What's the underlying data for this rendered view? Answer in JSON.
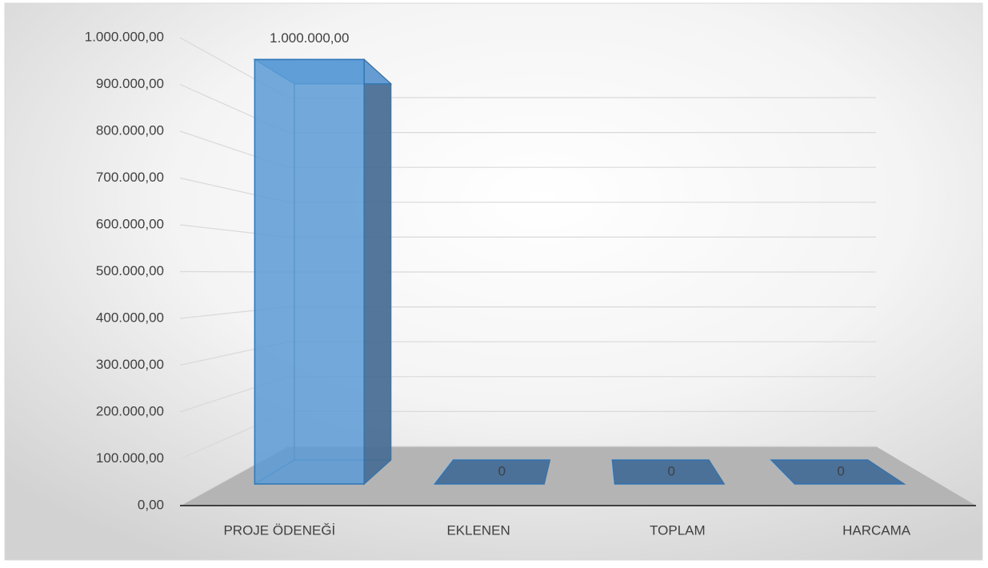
{
  "chart_data": {
    "type": "bar3d",
    "categories": [
      "PROJE ÖDENEĞİ",
      "EKLENEN",
      "TOPLAM",
      "HARCAMA"
    ],
    "values": [
      1000000,
      0,
      0,
      0
    ],
    "value_labels": [
      "1.000.000,00",
      "0",
      "0",
      "0"
    ],
    "color": "#5b9bd5",
    "ylim": [
      0,
      1000000
    ],
    "yticks": [
      {
        "value": 0,
        "label": "0,00"
      },
      {
        "value": 100000,
        "label": "100.000,00"
      },
      {
        "value": 200000,
        "label": "200.000,00"
      },
      {
        "value": 300000,
        "label": "300.000,00"
      },
      {
        "value": 400000,
        "label": "400.000,00"
      },
      {
        "value": 500000,
        "label": "500.000,00"
      },
      {
        "value": 600000,
        "label": "600.000,00"
      },
      {
        "value": 700000,
        "label": "700.000,00"
      },
      {
        "value": 800000,
        "label": "800.000,00"
      },
      {
        "value": 900000,
        "label": "900.000,00"
      },
      {
        "value": 1000000,
        "label": "1.000.000,00"
      }
    ],
    "grid": true
  }
}
